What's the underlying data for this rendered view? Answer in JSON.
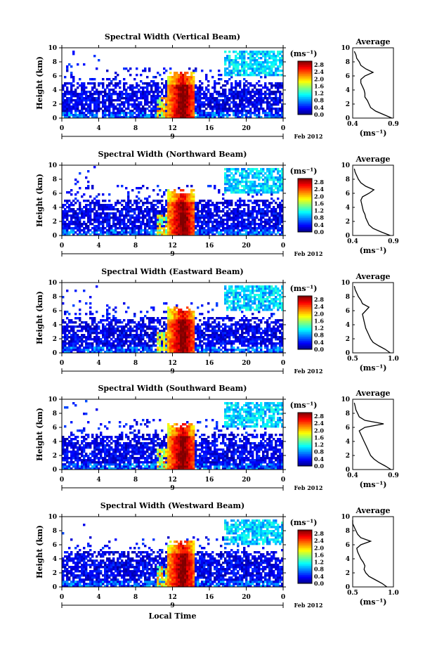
{
  "figure": {
    "date_label": "Feb 2012",
    "day_label": "9",
    "x_axis_label": "Local Time",
    "y_axis_label": "Height (km)",
    "colorbar_unit": "(ms⁻¹)",
    "profile_title": "Average",
    "profile_xlabel": "(ms⁻¹)"
  },
  "chart_data": [
    {
      "type": "heatmap",
      "title": "Spectral Width (Vertical Beam)",
      "x_ticks": [
        "0",
        "4",
        "8",
        "12",
        "16",
        "20",
        "0"
      ],
      "xlim_hours": [
        0,
        24
      ],
      "y_ticks": [
        "0",
        "2",
        "4",
        "6",
        "8",
        "10"
      ],
      "ylim_km": [
        0,
        10
      ],
      "colorbar_ticks": [
        "0.0",
        "0.4",
        "0.8",
        "1.2",
        "1.6",
        "2.0",
        "2.4",
        "2.8"
      ],
      "colorbar_range": [
        0,
        3.0
      ],
      "profile": {
        "title": "Average",
        "x_ticks": [
          "0.4",
          "0.9"
        ],
        "xlim": [
          0.4,
          0.9
        ],
        "height_km": [
          0,
          0.5,
          1,
          1.5,
          2,
          2.5,
          3,
          3.5,
          4,
          4.5,
          5,
          5.5,
          6,
          6.5,
          7,
          7.5,
          8,
          8.5,
          9,
          9.5
        ],
        "value": [
          0.88,
          0.78,
          0.68,
          0.62,
          0.6,
          0.58,
          0.55,
          0.55,
          0.54,
          0.52,
          0.5,
          0.5,
          0.55,
          0.65,
          0.56,
          0.5,
          0.48,
          0.45,
          0.44,
          0.42
        ]
      }
    },
    {
      "type": "heatmap",
      "title": "Spectral Width (Northward Beam)",
      "x_ticks": [
        "0",
        "4",
        "8",
        "12",
        "16",
        "20",
        "0"
      ],
      "xlim_hours": [
        0,
        24
      ],
      "y_ticks": [
        "0",
        "2",
        "4",
        "6",
        "8",
        "10"
      ],
      "ylim_km": [
        0,
        10
      ],
      "colorbar_ticks": [
        "0.0",
        "0.4",
        "0.8",
        "1.2",
        "1.6",
        "2.0",
        "2.4",
        "2.8"
      ],
      "colorbar_range": [
        0,
        3.0
      ],
      "profile": {
        "title": "Average",
        "x_ticks": [
          "0.4",
          "0.9"
        ],
        "xlim": [
          0.4,
          0.9
        ],
        "height_km": [
          0,
          0.5,
          1,
          1.5,
          2,
          2.5,
          3,
          3.5,
          4,
          4.5,
          5,
          5.5,
          6,
          6.5,
          7,
          7.5,
          8,
          8.5,
          9,
          9.5
        ],
        "value": [
          0.86,
          0.75,
          0.65,
          0.6,
          0.58,
          0.56,
          0.55,
          0.53,
          0.52,
          0.51,
          0.5,
          0.52,
          0.6,
          0.66,
          0.56,
          0.5,
          0.47,
          0.45,
          0.43,
          0.42
        ]
      }
    },
    {
      "type": "heatmap",
      "title": "Spectral Width (Eastward Beam)",
      "x_ticks": [
        "0",
        "4",
        "8",
        "12",
        "16",
        "20",
        "0"
      ],
      "xlim_hours": [
        0,
        24
      ],
      "y_ticks": [
        "0",
        "2",
        "4",
        "6",
        "8",
        "10"
      ],
      "ylim_km": [
        0,
        10
      ],
      "colorbar_ticks": [
        "0.0",
        "0.4",
        "0.8",
        "1.2",
        "1.6",
        "2.0",
        "2.4",
        "2.8"
      ],
      "colorbar_range": [
        0,
        3.0
      ],
      "profile": {
        "title": "Average",
        "x_ticks": [
          "0.5",
          "1.0"
        ],
        "xlim": [
          0.5,
          1.0
        ],
        "height_km": [
          0,
          0.5,
          1,
          1.5,
          2,
          2.5,
          3,
          3.5,
          4,
          4.5,
          5,
          5.5,
          6,
          6.5,
          7,
          7.5,
          8,
          8.5,
          9,
          9.5
        ],
        "value": [
          0.96,
          0.9,
          0.82,
          0.75,
          0.72,
          0.7,
          0.68,
          0.66,
          0.65,
          0.64,
          0.63,
          0.62,
          0.66,
          0.7,
          0.62,
          0.6,
          0.57,
          0.55,
          0.53,
          0.52
        ]
      }
    },
    {
      "type": "heatmap",
      "title": "Spectral Width (Southward Beam)",
      "x_ticks": [
        "0",
        "4",
        "8",
        "12",
        "16",
        "20",
        "0"
      ],
      "xlim_hours": [
        0,
        24
      ],
      "y_ticks": [
        "0",
        "2",
        "4",
        "6",
        "8",
        "10"
      ],
      "ylim_km": [
        0,
        10
      ],
      "colorbar_ticks": [
        "0.0",
        "0.4",
        "0.8",
        "1.2",
        "1.6",
        "2.0",
        "2.4",
        "2.8"
      ],
      "colorbar_range": [
        0,
        3.0
      ],
      "profile": {
        "title": "Average",
        "x_ticks": [
          "0.4",
          "0.9"
        ],
        "xlim": [
          0.4,
          0.9
        ],
        "height_km": [
          0,
          0.5,
          1,
          1.5,
          2,
          2.5,
          3,
          3.5,
          4,
          4.5,
          5,
          5.5,
          6,
          6.5,
          7,
          7.5,
          8,
          8.5,
          9,
          9.5
        ],
        "value": [
          0.87,
          0.8,
          0.72,
          0.66,
          0.62,
          0.6,
          0.58,
          0.56,
          0.54,
          0.52,
          0.5,
          0.48,
          0.55,
          0.78,
          0.55,
          0.48,
          0.46,
          0.44,
          0.43,
          0.42
        ]
      }
    },
    {
      "type": "heatmap",
      "title": "Spectral Width (Westward Beam)",
      "x_ticks": [
        "0",
        "4",
        "8",
        "12",
        "16",
        "20",
        "0"
      ],
      "xlim_hours": [
        0,
        24
      ],
      "y_ticks": [
        "0",
        "2",
        "4",
        "6",
        "8",
        "10"
      ],
      "ylim_km": [
        0,
        10
      ],
      "colorbar_ticks": [
        "0.0",
        "0.4",
        "0.8",
        "1.2",
        "1.6",
        "2.0",
        "2.4",
        "2.8"
      ],
      "colorbar_range": [
        0,
        3.0
      ],
      "profile": {
        "title": "Average",
        "x_ticks": [
          "0.5",
          "1.0"
        ],
        "xlim": [
          0.5,
          1.0
        ],
        "height_km": [
          0,
          0.5,
          1,
          1.5,
          2,
          2.5,
          3,
          3.5,
          4,
          4.5,
          5,
          5.5,
          6,
          6.5,
          7,
          7.5,
          8,
          8.5,
          9,
          9.5
        ],
        "value": [
          0.92,
          0.86,
          0.78,
          0.7,
          0.66,
          0.64,
          0.65,
          0.63,
          0.6,
          0.58,
          0.56,
          0.55,
          0.6,
          0.72,
          0.6,
          0.56,
          0.54,
          0.52,
          0.5,
          0.5
        ]
      }
    }
  ]
}
